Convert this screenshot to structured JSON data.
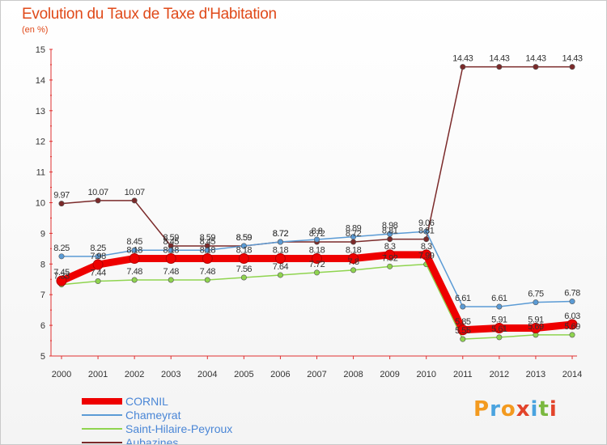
{
  "title": "Evolution du Taux de Taxe d'Habitation",
  "subtitle": "(en %)",
  "logo": {
    "letters": [
      "P",
      "r",
      "o",
      "x",
      "i",
      "t",
      "i"
    ],
    "colors": [
      "#f39a1f",
      "#4aa3df",
      "#f39a1f",
      "#e2442b",
      "#4aa3df",
      "#7ab83f",
      "#e2442b"
    ]
  },
  "chart_data": {
    "type": "line",
    "title": "Evolution du Taux de Taxe d'Habitation",
    "ylabel": "(en %)",
    "xlabel": "",
    "x": [
      2000,
      2001,
      2002,
      2003,
      2004,
      2005,
      2006,
      2007,
      2008,
      2009,
      2010,
      2011,
      2012,
      2013,
      2014
    ],
    "ylim": [
      5,
      15
    ],
    "yticks": [
      5,
      6,
      7,
      8,
      9,
      10,
      11,
      12,
      13,
      14,
      15
    ],
    "grid": false,
    "legend_position": "bottom-left",
    "series": [
      {
        "name": "CORNIL",
        "color": "#ee0000",
        "width": 9,
        "values": [
          7.45,
          7.98,
          8.18,
          8.18,
          8.18,
          8.18,
          8.18,
          8.18,
          8.18,
          8.3,
          8.3,
          5.85,
          5.91,
          5.91,
          6.03
        ],
        "labels": [
          "7.45",
          "7.98",
          "8.18",
          "8.18",
          "8.18",
          "8.18",
          "8.18",
          "8.18",
          "8.18",
          "8.3",
          "8.3",
          "5.85",
          "5.91",
          "5.91",
          "6.03"
        ]
      },
      {
        "name": "Chameyrat",
        "color": "#5b9bd5",
        "width": 1.5,
        "values": [
          8.25,
          8.25,
          8.45,
          8.45,
          8.45,
          8.59,
          8.72,
          8.8,
          8.89,
          8.98,
          9.06,
          6.61,
          6.61,
          6.75,
          6.78
        ],
        "labels": [
          "8.25",
          "8.25",
          "8.45",
          "8.45",
          "8.45",
          "8.59",
          "8.72",
          "8.8",
          "8.89",
          "8.98",
          "9.06",
          "6.61",
          "6.61",
          "6.75",
          "6.78"
        ]
      },
      {
        "name": "Saint-Hilaire-Peyroux",
        "color": "#8fd44f",
        "width": 1.5,
        "values": [
          7.33,
          7.44,
          7.48,
          7.48,
          7.48,
          7.56,
          7.64,
          7.72,
          7.8,
          7.92,
          7.99,
          5.55,
          5.61,
          5.69,
          5.69
        ],
        "labels": [
          "7.33",
          "7.44",
          "7.48",
          "7.48",
          "7.48",
          "7.56",
          "7.64",
          "7.72",
          "7.8",
          "7.92",
          "7.99",
          "5.55",
          "5.61",
          "5.69",
          "5.69"
        ]
      },
      {
        "name": "Aubazines",
        "color": "#7b2a2a",
        "width": 1.5,
        "values": [
          9.97,
          10.07,
          10.07,
          8.59,
          8.59,
          8.59,
          8.72,
          8.72,
          8.72,
          8.81,
          8.81,
          14.43,
          14.43,
          14.43,
          14.43
        ],
        "labels": [
          "9.97",
          "10.07",
          "10.07",
          "8.59",
          "8.59",
          "8.59",
          "8.72",
          "8.72",
          "8.72",
          "8.81",
          "8.81",
          "14.43",
          "14.43",
          "14.43",
          "14.43"
        ]
      }
    ]
  }
}
